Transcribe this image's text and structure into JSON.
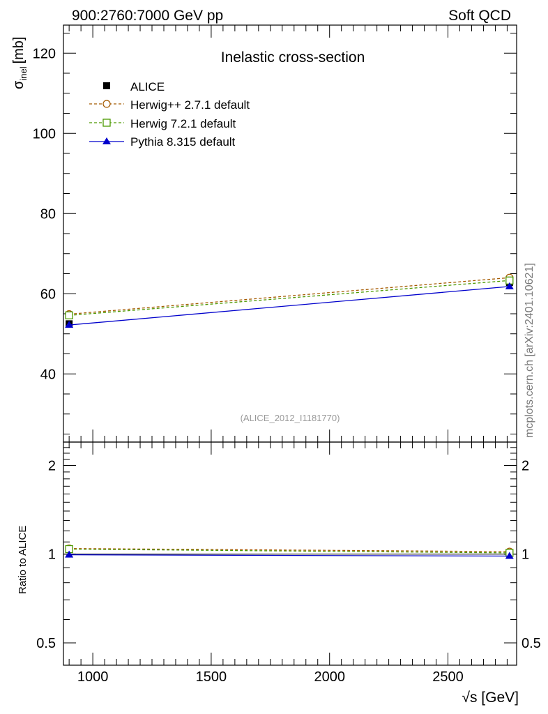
{
  "header": {
    "left": "900:2760:7000 GeV pp",
    "right": "Soft QCD"
  },
  "watermark": "mcplots.cern.ch [arXiv:2401.10621]",
  "reference": "(ALICE_2012_I1181770)",
  "colors": {
    "alice": "#000000",
    "herwigpp": "#a55a00",
    "herwig7": "#4c9900",
    "pythia": "#0000cc"
  },
  "chart_data": [
    {
      "type": "line",
      "title": "Inelastic cross-section",
      "ylabel_main": "σ",
      "ylabel_sub": "inel",
      "ylabel_unit": "[mb]",
      "xlabel": "",
      "xlim": [
        876,
        2790
      ],
      "ylim": [
        23,
        127
      ],
      "yticks": [
        40,
        60,
        80,
        100,
        120
      ],
      "ytick_labels": [
        "40",
        "60",
        "80",
        "100",
        "120"
      ],
      "x": [
        900,
        2760
      ],
      "series": [
        {
          "name": "ALICE",
          "key": "alice",
          "values": [
            52.5,
            62.8
          ],
          "style": "data"
        },
        {
          "name": "Herwig++ 2.7.1 default",
          "key": "herwigpp",
          "values": [
            54.9,
            64.0
          ],
          "style": "dashed-circle"
        },
        {
          "name": "Herwig 7.2.1 default",
          "key": "herwig7",
          "values": [
            54.6,
            63.3
          ],
          "style": "dashed-square"
        },
        {
          "name": "Pythia 8.315 default",
          "key": "pythia",
          "values": [
            52.2,
            61.8
          ],
          "style": "solid-triangle"
        }
      ]
    },
    {
      "type": "line",
      "title": "",
      "ylabel": "Ratio to ALICE",
      "xlabel": "√s [GeV]",
      "xlim": [
        876,
        2790
      ],
      "ylim": [
        0.42,
        2.4
      ],
      "yscale": "log",
      "yticks": [
        0.5,
        1,
        2
      ],
      "ytick_labels": [
        "0.5",
        "1",
        "2"
      ],
      "xticks": [
        1000,
        1500,
        2000,
        2500
      ],
      "xtick_labels": [
        "1000",
        "1500",
        "2000",
        "2500"
      ],
      "x": [
        900,
        2760
      ],
      "series": [
        {
          "name": "Herwig++ 2.7.1 default",
          "key": "herwigpp",
          "values": [
            1.045,
            1.02
          ],
          "style": "dashed-circle"
        },
        {
          "name": "Herwig 7.2.1 default",
          "key": "herwig7",
          "values": [
            1.04,
            1.01
          ],
          "style": "dashed-square"
        },
        {
          "name": "Pythia 8.315 default",
          "key": "pythia",
          "values": [
            0.995,
            0.985
          ],
          "style": "solid-triangle"
        }
      ]
    }
  ]
}
